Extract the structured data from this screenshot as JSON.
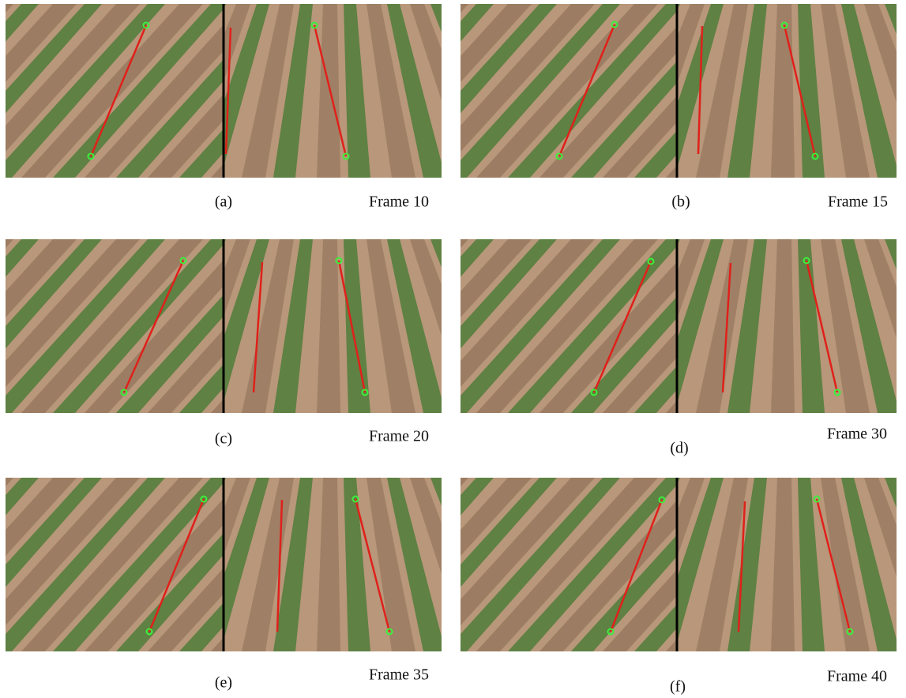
{
  "panels": [
    {
      "label": "(a)",
      "frame": "Frame 10"
    },
    {
      "label": "(b)",
      "frame": "Frame 15"
    },
    {
      "label": "(c)",
      "frame": "Frame 20"
    },
    {
      "label": "(d)",
      "frame": "Frame 30"
    },
    {
      "label": "(e)",
      "frame": "Frame 35"
    },
    {
      "label": "(f)",
      "frame": "Frame 40"
    }
  ]
}
